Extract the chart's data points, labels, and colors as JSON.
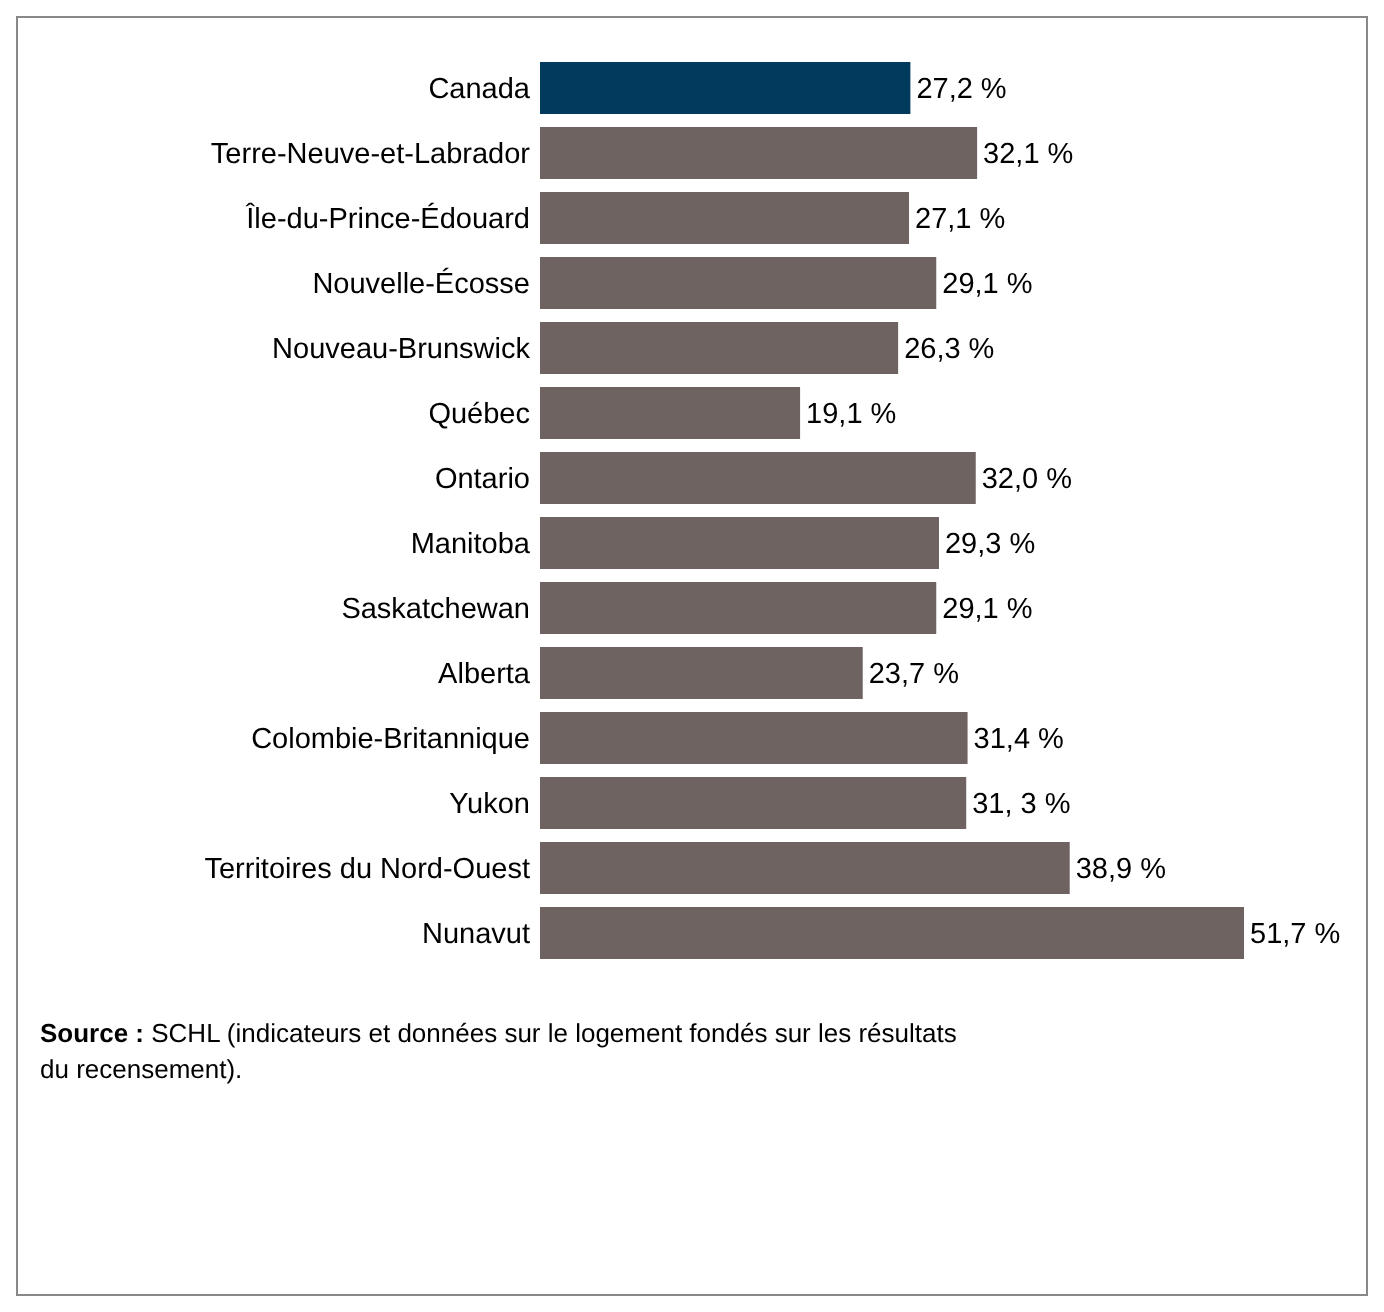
{
  "chart_data": {
    "type": "bar",
    "orientation": "horizontal",
    "data_labels": true,
    "categories": [
      "Canada",
      "Terre-Neuve-et-Labrador",
      "Île-du-Prince-Édouard",
      "Nouvelle-Écosse",
      "Nouveau-Brunswick",
      "Québec",
      "Ontario",
      "Manitoba",
      "Saskatchewan",
      "Alberta",
      "Colombie-Britannique",
      "Yukon",
      "Territoires du Nord-Ouest",
      "Nunavut"
    ],
    "values": [
      27.2,
      32.1,
      27.1,
      29.1,
      26.3,
      19.1,
      32.0,
      29.3,
      29.1,
      23.7,
      31.4,
      31.3,
      38.9,
      51.7
    ],
    "value_labels": [
      "27,2 %",
      "32,1 %",
      "27,1 %",
      "29,1 %",
      "26,3 %",
      "19,1 %",
      "32,0 %",
      "29,3 %",
      "29,1 %",
      "23,7 %",
      "31,4 %",
      "31, 3 %",
      "38,9 %",
      "51,7 %"
    ],
    "colors": [
      "#003a5d",
      "#6e6360",
      "#6e6360",
      "#6e6360",
      "#6e6360",
      "#6e6360",
      "#6e6360",
      "#6e6360",
      "#6e6360",
      "#6e6360",
      "#6e6360",
      "#6e6360",
      "#6e6360",
      "#6e6360"
    ],
    "annotations": [
      "Source : SCHL (indicateurs et données sur le logement fondés sur les résultats du recensement)."
    ]
  }
}
